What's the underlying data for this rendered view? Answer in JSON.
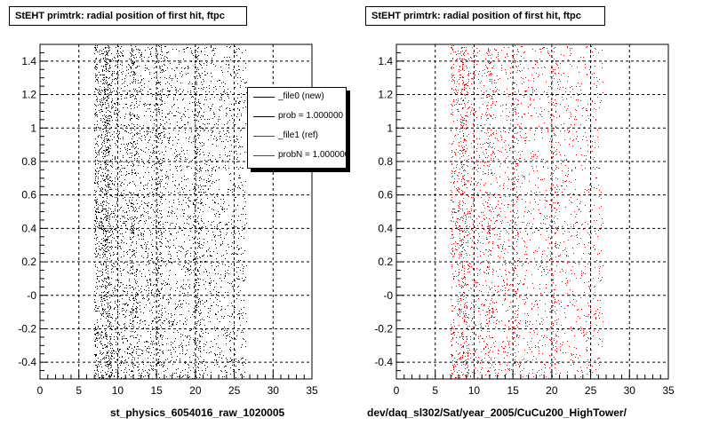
{
  "colors": {
    "new": "#000000",
    "ref": "#ff0000",
    "frame": "#000000",
    "grid": "#000000"
  },
  "legend": {
    "entries": [
      {
        "label": "_file0 (new)",
        "color": "#000000"
      },
      {
        "label": "prob = 1.000000",
        "color": "#000000"
      },
      {
        "label": "_file1 (ref)",
        "color": "#ff0000"
      },
      {
        "label": "probN = 1.000000",
        "color": "#ff0000"
      }
    ]
  },
  "chart_data": [
    {
      "type": "scatter",
      "title": "StEHT primtrk: radial position of first hit, ftpc",
      "xlabel": "st_physics_6054016_raw_1020005",
      "ylabel": "",
      "xlim": [
        0,
        35
      ],
      "ylim": [
        -0.5,
        1.5
      ],
      "grid": true,
      "legend_position": "top-right",
      "x_ticks": [
        "0",
        "5",
        "10",
        "15",
        "20",
        "25",
        "30",
        "35"
      ],
      "y_ticks": [
        "-0.4",
        "-0.2",
        "-0",
        "0.2",
        "0.4",
        "0.6",
        "0.8",
        "1",
        "1.2",
        "1.4"
      ],
      "series": [
        {
          "name": "_file0 (new)",
          "color": "#000000",
          "x_range": [
            7.0,
            26.5
          ],
          "x_peaks": [
            8.3,
            8.8,
            12.0,
            15.3,
            20.2
          ],
          "density": "dense"
        }
      ]
    },
    {
      "type": "scatter",
      "title": "StEHT primtrk: radial position of first hit, ftpc",
      "xlabel": "dev/daq_sl302/Sat/year_2005/CuCu200_HighTower/",
      "ylabel": "",
      "xlim": [
        0,
        35
      ],
      "ylim": [
        -0.5,
        1.5
      ],
      "grid": true,
      "x_ticks": [
        "0",
        "5",
        "10",
        "15",
        "20",
        "25",
        "30",
        "35"
      ],
      "y_ticks": [
        "-0.4",
        "-0.2",
        "-0",
        "0.2",
        "0.4",
        "0.6",
        "0.8",
        "1",
        "1.2",
        "1.4"
      ],
      "series": [
        {
          "name": "_file1 (ref)",
          "color": "#ff0000",
          "x_range": [
            7.0,
            26.5
          ],
          "x_peaks": [
            8.3,
            8.8,
            12.0,
            15.3,
            20.2
          ],
          "density": "medium"
        }
      ]
    }
  ]
}
